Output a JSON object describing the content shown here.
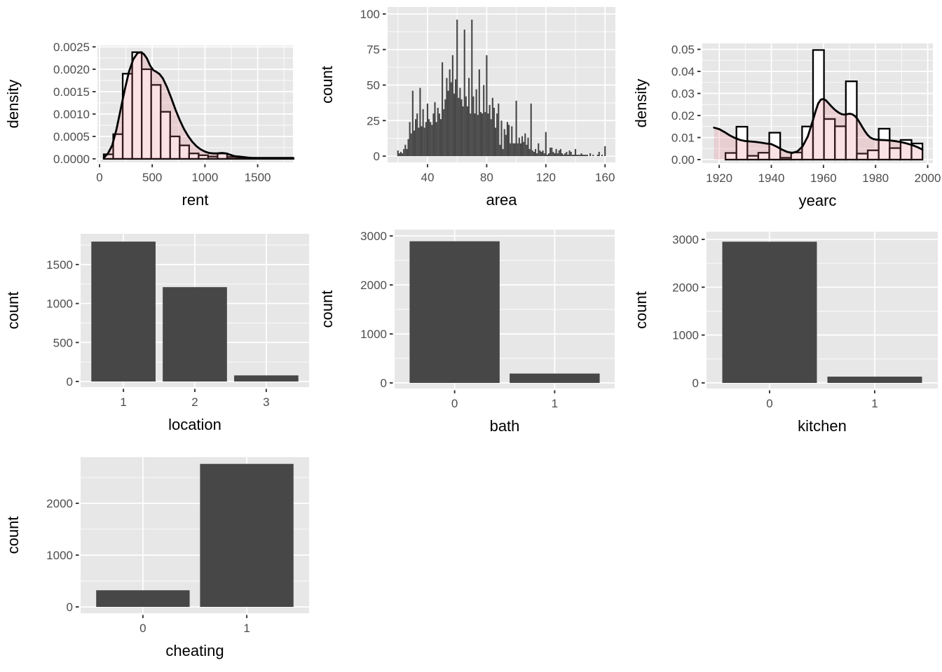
{
  "theme": {
    "page_bg": "#ffffff",
    "panel_bg": "#e7e7e7",
    "grid_color": "#ffffff",
    "bar_dark": "#474747",
    "tick_text_color": "#4d4d4d",
    "axis_title_color": "#000000",
    "tick_mark_color": "#333333"
  },
  "chart_data": [
    {
      "id": "rent",
      "type": "histogram_density",
      "xlabel": "rent",
      "ylabel": "density",
      "xlim": [
        -20,
        1835
      ],
      "ylim": [
        -8e-05,
        0.00253
      ],
      "x_ticks": {
        "values": [
          0,
          500,
          1000,
          1500
        ],
        "labels": [
          "0",
          "500",
          "1000",
          "1500"
        ]
      },
      "y_ticks": {
        "values": [
          0,
          0.0005,
          0.001,
          0.0015,
          0.002,
          0.0025
        ],
        "labels": [
          "0.0000",
          "0.0005",
          "0.0010",
          "0.0015",
          "0.0020",
          "0.0025"
        ]
      },
      "bins": {
        "start": 40,
        "width": 90,
        "heights": [
          0.0001,
          0.00055,
          0.0019,
          0.00238,
          0.002,
          0.00165,
          0.00105,
          0.0005,
          0.0003,
          0.00012,
          8e-05,
          5e-05,
          0.00012,
          4e-05,
          2e-05,
          2e-05,
          1e-05,
          1e-05,
          1e-05,
          2e-05
        ]
      },
      "density": {
        "x": [
          40,
          80,
          120,
          160,
          200,
          240,
          280,
          320,
          360,
          390,
          420,
          450,
          480,
          510,
          540,
          570,
          600,
          640,
          680,
          720,
          760,
          800,
          840,
          880,
          920,
          960,
          1000,
          1040,
          1080,
          1120,
          1160,
          1200,
          1240,
          1280,
          1320,
          1360,
          1400,
          1450,
          1500,
          1600,
          1700,
          1800,
          1835
        ],
        "y": [
          2e-05,
          0.00012,
          0.0003,
          0.00065,
          0.0011,
          0.00155,
          0.00195,
          0.00222,
          0.00236,
          0.00238,
          0.00234,
          0.00224,
          0.00208,
          0.00198,
          0.00194,
          0.00189,
          0.0018,
          0.0016,
          0.00136,
          0.0011,
          0.00087,
          0.00067,
          0.00051,
          0.00038,
          0.00028,
          0.00021,
          0.00016,
          0.00013,
          0.00012,
          0.00012,
          0.00013,
          0.00012,
          9e-05,
          6e-05,
          5e-05,
          4e-05,
          3e-05,
          2e-05,
          2e-05,
          2e-05,
          2e-05,
          2e-05,
          2e-05
        ]
      },
      "style": {
        "bar_fill": "#ffffff",
        "bar_stroke": "#000000",
        "density_fill": "rgba(230,120,130,0.22)",
        "line_color": "#000000"
      }
    },
    {
      "id": "area",
      "type": "histogram",
      "xlabel": "area",
      "ylabel": "count",
      "xlim": [
        13,
        167
      ],
      "ylim": [
        -4.4,
        104.9
      ],
      "x_ticks": {
        "values": [
          40,
          80,
          120,
          160
        ],
        "labels": [
          "40",
          "80",
          "120",
          "160"
        ]
      },
      "y_ticks": {
        "values": [
          0,
          25,
          50,
          75,
          100
        ],
        "labels": [
          "0",
          "25",
          "50",
          "75",
          "100"
        ]
      },
      "bins": {
        "start": 19.5,
        "width": 1,
        "heights": [
          4,
          2,
          3,
          2,
          5,
          8,
          5,
          12,
          24,
          16,
          46,
          18,
          26,
          30,
          20,
          48,
          21,
          33,
          20,
          24,
          37,
          26,
          24,
          22,
          30,
          38,
          24,
          34,
          30,
          26,
          66,
          33,
          40,
          55,
          46,
          61,
          52,
          71,
          44,
          54,
          96,
          41,
          48,
          40,
          35,
          89,
          42,
          35,
          55,
          30,
          96,
          42,
          30,
          47,
          29,
          61,
          31,
          30,
          50,
          31,
          71,
          30,
          36,
          26,
          41,
          34,
          20,
          30,
          37,
          8,
          25,
          5,
          19,
          15,
          24,
          22,
          9,
          21,
          9,
          9,
          39,
          9,
          13,
          9,
          14,
          10,
          16,
          8,
          13,
          5,
          37,
          4,
          3,
          5,
          2,
          9,
          4,
          3,
          4,
          2,
          17,
          1,
          2,
          6,
          6,
          3,
          2,
          5,
          2,
          4,
          5,
          2,
          1,
          2,
          3,
          1,
          4,
          3,
          1,
          1,
          5,
          1,
          1,
          1,
          2,
          1,
          1,
          1,
          1,
          0,
          2,
          0,
          1,
          0,
          0,
          1,
          3,
          0,
          1,
          0,
          7
        ]
      },
      "style": {
        "bar_fill": "#474747"
      }
    },
    {
      "id": "yearc",
      "type": "histogram_density",
      "xlabel": "yearc",
      "ylabel": "density",
      "xlim": [
        1913.5,
        2002
      ],
      "ylim": [
        -0.0016,
        0.0527
      ],
      "x_ticks": {
        "values": [
          1920,
          1940,
          1960,
          1980,
          2000
        ],
        "labels": [
          "1920",
          "1940",
          "1960",
          "1980",
          "2000"
        ]
      },
      "y_ticks": {
        "values": [
          0,
          0.01,
          0.02,
          0.03,
          0.04,
          0.05
        ],
        "labels": [
          "0.00",
          "0.01",
          "0.02",
          "0.03",
          "0.04",
          "0.05"
        ]
      },
      "bins": {
        "start": 1922.4,
        "width": 4.2,
        "heights": [
          0.003,
          0.0149,
          0.0017,
          0.0031,
          0.0122,
          0.0008,
          0.0032,
          0.015,
          0.0497,
          0.0184,
          0.0151,
          0.0355,
          0.0027,
          0.0042,
          0.014,
          0.0052,
          0.0089,
          0.0073
        ]
      },
      "density": {
        "x": [
          1918,
          1920,
          1922,
          1924,
          1926,
          1928,
          1930,
          1932,
          1934,
          1936,
          1938,
          1940,
          1942,
          1944,
          1946,
          1948,
          1950,
          1952,
          1954,
          1956,
          1957,
          1958,
          1959,
          1960,
          1961,
          1962,
          1963,
          1964,
          1965,
          1966,
          1967,
          1968,
          1969,
          1970,
          1971,
          1972,
          1973,
          1974,
          1975,
          1976,
          1977,
          1978,
          1979,
          1980,
          1982,
          1984,
          1986,
          1988,
          1990,
          1992,
          1994,
          1996,
          1998
        ],
        "y": [
          0.0145,
          0.0138,
          0.0125,
          0.011,
          0.0098,
          0.0089,
          0.0084,
          0.0082,
          0.008,
          0.0077,
          0.0073,
          0.007,
          0.0059,
          0.0046,
          0.0035,
          0.003,
          0.0037,
          0.006,
          0.0105,
          0.018,
          0.022,
          0.0255,
          0.0272,
          0.0275,
          0.0268,
          0.0255,
          0.0242,
          0.023,
          0.022,
          0.0212,
          0.0206,
          0.0204,
          0.0206,
          0.0208,
          0.0206,
          0.0198,
          0.0185,
          0.0166,
          0.0146,
          0.0127,
          0.0111,
          0.01,
          0.0094,
          0.0091,
          0.0089,
          0.0088,
          0.0086,
          0.0083,
          0.0079,
          0.0073,
          0.0066,
          0.0057,
          0.0045
        ]
      },
      "style": {
        "bar_fill": "#ffffff",
        "bar_stroke": "#000000",
        "density_fill": "rgba(230,120,130,0.22)",
        "line_color": "#000000"
      }
    },
    {
      "id": "location",
      "type": "bar",
      "xlabel": "location",
      "ylabel": "count",
      "categories": [
        "1",
        "2",
        "3"
      ],
      "values": [
        1794,
        1210,
        78
      ],
      "xlim": [
        0.4,
        3.6
      ],
      "ylim": [
        -72,
        1894
      ],
      "y_ticks": {
        "values": [
          0,
          500,
          1000,
          1500
        ],
        "labels": [
          "0",
          "500",
          "1000",
          "1500"
        ]
      },
      "style": {
        "bar_fill": "#474747"
      }
    },
    {
      "id": "bath",
      "type": "bar",
      "xlabel": "bath",
      "ylabel": "count",
      "categories": [
        "0",
        "1"
      ],
      "values": [
        2891,
        191
      ],
      "xlim": [
        0.4,
        2.6
      ],
      "ylim": [
        -114,
        3129
      ],
      "y_ticks": {
        "values": [
          0,
          1000,
          2000,
          3000
        ],
        "labels": [
          "0",
          "1000",
          "2000",
          "3000"
        ]
      },
      "style": {
        "bar_fill": "#474747"
      }
    },
    {
      "id": "kitchen",
      "type": "bar",
      "xlabel": "kitchen",
      "ylabel": "count",
      "categories": [
        "0",
        "1"
      ],
      "values": [
        2951,
        131
      ],
      "xlim": [
        0.4,
        2.6
      ],
      "ylim": [
        -117,
        3160
      ],
      "y_ticks": {
        "values": [
          0,
          1000,
          2000,
          3000
        ],
        "labels": [
          "0",
          "1000",
          "2000",
          "3000"
        ]
      },
      "style": {
        "bar_fill": "#474747"
      }
    },
    {
      "id": "cheating",
      "type": "bar",
      "xlabel": "cheating",
      "ylabel": "count",
      "categories": [
        "0",
        "1"
      ],
      "values": [
        321,
        2761
      ],
      "xlim": [
        0.4,
        2.6
      ],
      "ylim": [
        -122,
        2892
      ],
      "y_ticks": {
        "values": [
          0,
          1000,
          2000
        ],
        "labels": [
          "0",
          "1000",
          "2000"
        ]
      },
      "style": {
        "bar_fill": "#474747"
      }
    }
  ]
}
